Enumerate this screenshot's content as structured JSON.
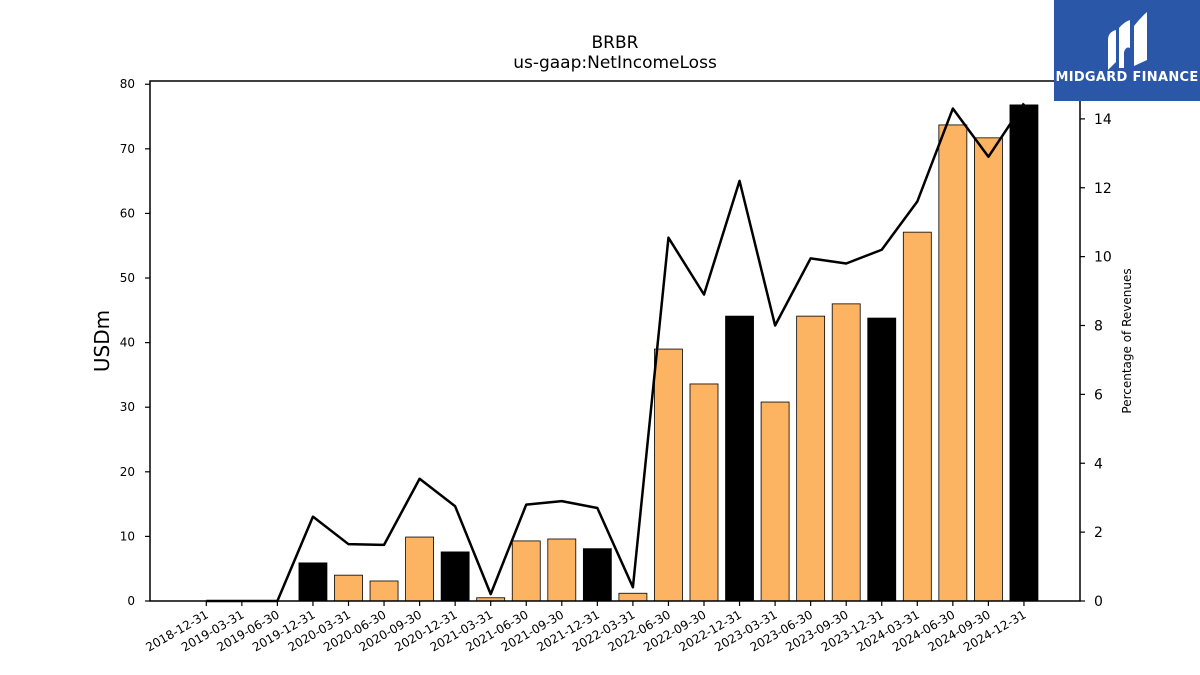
{
  "chart_data": {
    "type": "bar",
    "title": "BRBR",
    "subtitle": "us-gaap:NetIncomeLoss",
    "ylabel": "USDm",
    "y2label": "Percentage of Revenues",
    "ylim": [
      0,
      80.5
    ],
    "y2lim": [
      0,
      15.1
    ],
    "yticks": [
      0,
      10,
      20,
      30,
      40,
      50,
      60,
      70,
      80
    ],
    "y2ticks": [
      0,
      2,
      4,
      6,
      8,
      10,
      12,
      14
    ],
    "categories": [
      "2018-12-31",
      "2019-03-31",
      "2019-06-30",
      "2019-12-31",
      "2020-03-31",
      "2020-06-30",
      "2020-09-30",
      "2020-12-31",
      "2021-03-31",
      "2021-06-30",
      "2021-09-30",
      "2021-12-31",
      "2022-03-31",
      "2022-06-30",
      "2022-09-30",
      "2022-12-31",
      "2023-03-31",
      "2023-06-30",
      "2023-09-30",
      "2023-12-31",
      "2024-03-31",
      "2024-06-30",
      "2024-09-30",
      "2024-12-31"
    ],
    "series": [
      {
        "type": "bar",
        "values": [
          0,
          0,
          0,
          5.9,
          4.0,
          3.1,
          9.9,
          7.6,
          0.5,
          9.3,
          9.6,
          8.1,
          1.2,
          39.0,
          33.6,
          44.1,
          30.8,
          44.1,
          46.0,
          43.8,
          57.1,
          73.7,
          71.7,
          76.8
        ],
        "colors": [
          "#fdb462",
          "#fdb462",
          "#fdb462",
          "#000000",
          "#fdb462",
          "#fdb462",
          "#fdb462",
          "#000000",
          "#fdb462",
          "#fdb462",
          "#fdb462",
          "#000000",
          "#fdb462",
          "#fdb462",
          "#fdb462",
          "#000000",
          "#fdb462",
          "#fdb462",
          "#fdb462",
          "#000000",
          "#fdb462",
          "#fdb462",
          "#fdb462",
          "#000000"
        ]
      },
      {
        "type": "line",
        "axis": "right",
        "values": [
          0,
          0,
          0,
          2.45,
          1.65,
          1.63,
          3.55,
          2.75,
          0.2,
          2.8,
          2.9,
          2.7,
          0.4,
          10.55,
          8.9,
          12.2,
          8.0,
          9.95,
          9.8,
          10.2,
          11.6,
          14.3,
          12.9,
          14.45
        ],
        "color": "#000000"
      }
    ]
  },
  "logo": {
    "text": "MIDGARD FINANCE",
    "background": "#2a57a8"
  }
}
